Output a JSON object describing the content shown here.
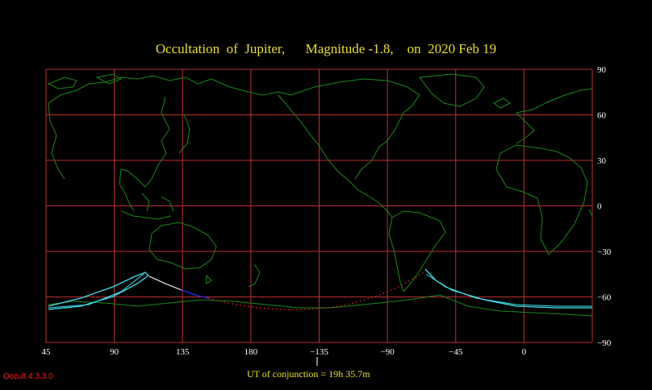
{
  "title": "Occultation  of  Jupiter,      Magnitude -1.8,    on  2020 Feb 19",
  "lon_ticks": [
    "45",
    "90",
    "135",
    "180",
    "−135",
    "−90",
    "−45",
    "0"
  ],
  "lat_ticks": [
    "90",
    "60",
    "30",
    "0",
    "−30",
    "−60",
    "−90"
  ],
  "ut_text": "UT of conjunction = 19h 35.7m",
  "version": "Occult 4.3.3.0",
  "colors": {
    "grid": "#c03030",
    "coast": "#1a8a1a",
    "limit": "#40e0f0",
    "track_day": "#ffffff",
    "track_twilight": "#2030ff",
    "track_night": "#d02020",
    "title": "#e8e030"
  },
  "icons": {
    "conjunction_marker": "tick-mark-icon"
  }
}
